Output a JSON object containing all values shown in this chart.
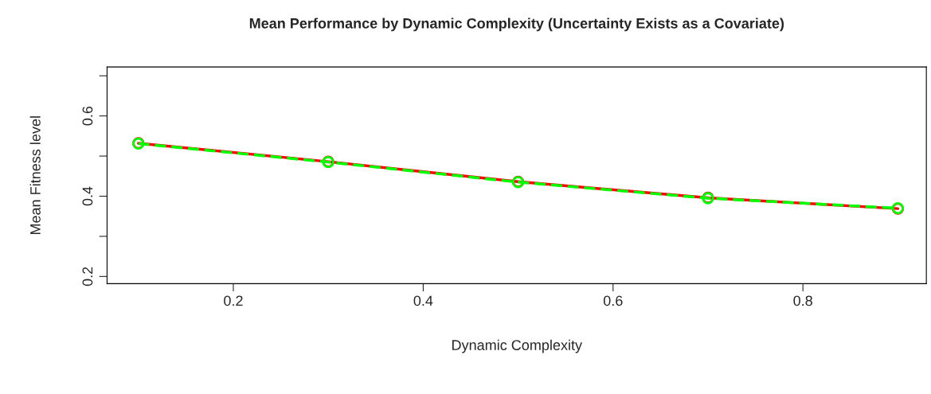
{
  "chart_data": {
    "type": "line",
    "title": "Mean Performance by Dynamic Complexity (Uncertainty Exists as a Covariate)",
    "xlabel": "Dynamic Complexity",
    "ylabel": "Mean Fitness level",
    "x": [
      0.1,
      0.3,
      0.5,
      0.7,
      0.9
    ],
    "series": [
      {
        "color": "#ff0000",
        "values": [
          0.532,
          0.486,
          0.436,
          0.396,
          0.369
        ],
        "line_style": "solid"
      },
      {
        "color": "#00ff00",
        "values": [
          0.531,
          0.485,
          0.435,
          0.395,
          0.37
        ],
        "line_style": "dashed"
      }
    ],
    "marker": "circle",
    "grid": false,
    "xlim": [
      0.067,
      0.93
    ],
    "xticks": [
      0.2,
      0.4,
      0.6,
      0.8
    ],
    "ylim": [
      0.182,
      0.722
    ],
    "yticks": [
      0.2,
      {
        "value": 0.3,
        "label": null
      },
      0.4,
      {
        "value": 0.5,
        "label": null
      },
      0.6,
      {
        "value": 0.7,
        "label": null
      }
    ]
  }
}
